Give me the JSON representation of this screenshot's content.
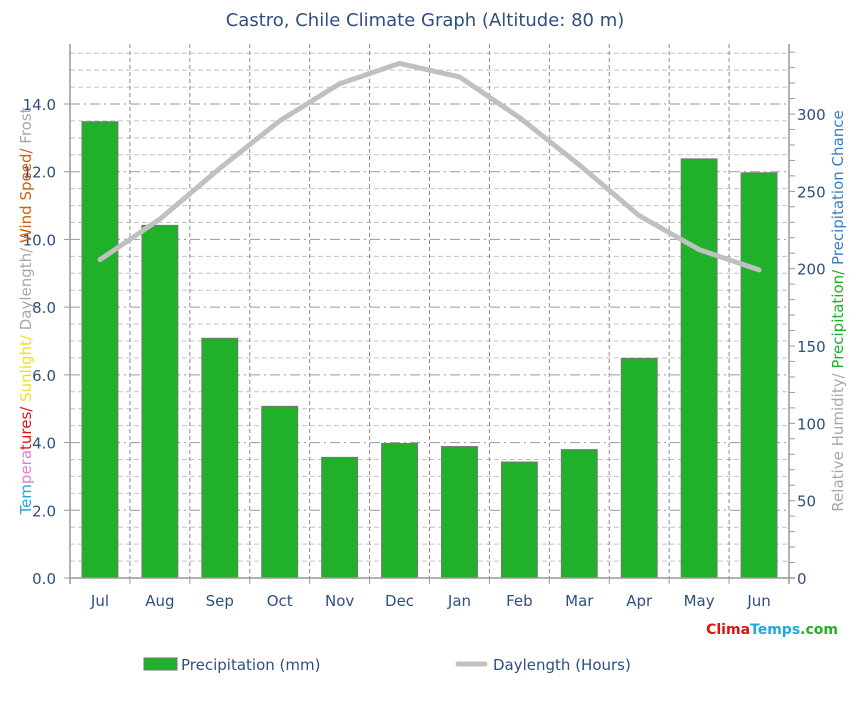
{
  "chart_data": {
    "type": "bar",
    "title": "Castro, Chile Climate Graph (Altitude: 80 m)",
    "categories": [
      "Jul",
      "Aug",
      "Sep",
      "Oct",
      "Nov",
      "Dec",
      "Jan",
      "Feb",
      "Mar",
      "Apr",
      "May",
      "Jun"
    ],
    "series": [
      {
        "name": "Precipitation (mm)",
        "type": "bar",
        "axis": "right",
        "color": "#21b02a",
        "values": [
          295,
          228,
          155,
          111,
          78,
          87,
          85,
          75,
          83,
          142,
          271,
          262
        ]
      },
      {
        "name": "Daylength (Hours)",
        "type": "line",
        "axis": "left",
        "color": "#c0c0c0",
        "values": [
          9.4,
          10.6,
          12.1,
          13.5,
          14.6,
          15.2,
          14.8,
          13.6,
          12.2,
          10.7,
          9.7,
          9.1
        ]
      }
    ],
    "left_axis": {
      "ticks": [
        "0.0",
        "2.0",
        "4.0",
        "6.0",
        "8.0",
        "10.0",
        "12.0",
        "14.0"
      ],
      "range": [
        0,
        15.77
      ],
      "label_parts": [
        {
          "text": "Tem",
          "color": "#1ea8e0"
        },
        {
          "text": "pera",
          "color": "#e080d0"
        },
        {
          "text": "tures/ ",
          "color": "#e01010"
        },
        {
          "text": "Sunlight/ ",
          "color": "#f0e020"
        },
        {
          "text": "Daylength/ ",
          "color": "#a8a8a8"
        },
        {
          "text": "Wind Speed/ ",
          "color": "#d06010"
        },
        {
          "text": "Frost",
          "color": "#a8a8a8"
        }
      ]
    },
    "right_axis": {
      "ticks": [
        "0",
        "50",
        "100",
        "150",
        "200",
        "250",
        "300"
      ],
      "range": [
        0,
        345
      ],
      "label_parts": [
        {
          "text": "Relative Humidity/ ",
          "color": "#a8a8a8"
        },
        {
          "text": "Precipitation/ ",
          "color": "#21b02a"
        },
        {
          "text": "Precipitation Chance",
          "color": "#3a7fc0"
        }
      ]
    },
    "grid": true,
    "legend_position": "bottom"
  },
  "legend": {
    "precip_label": "Precipitation (mm)",
    "daylength_label": "Daylength (Hours)"
  },
  "brand": {
    "clima": "Clima",
    "temps": "Temps",
    "com": ".com",
    "clima_color": "#e01010",
    "temps_color": "#1ea8e0",
    "com_color": "#21b02a"
  }
}
